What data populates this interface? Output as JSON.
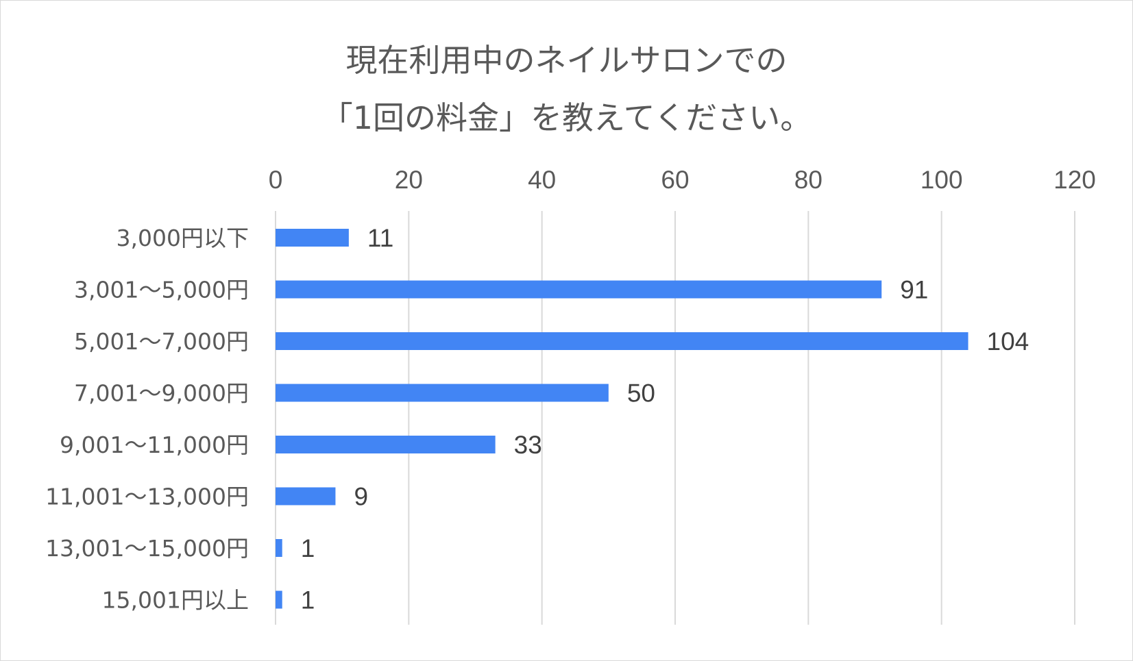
{
  "chart_data": {
    "type": "bar",
    "orientation": "horizontal",
    "title_lines": [
      "現在利用中のネイルサロンでの",
      "「1回の料金」を教えてください。"
    ],
    "categories": [
      "3,000円以下",
      "3,001～5,000円",
      "5,001～7,000円",
      "7,001～9,000円",
      "9,001～11,000円",
      "11,001～13,000円",
      "13,001～15,000円",
      "15,001円以上"
    ],
    "values": [
      11,
      91,
      104,
      50,
      33,
      9,
      1,
      1
    ],
    "xlim": [
      0,
      120
    ],
    "x_ticks": [
      "0",
      "20",
      "40",
      "60",
      "80",
      "100",
      "120"
    ],
    "axis_position": "top",
    "grid": true,
    "data_labels": true,
    "bar_color": "#4285f4",
    "grid_color": "#d9d9d9"
  }
}
